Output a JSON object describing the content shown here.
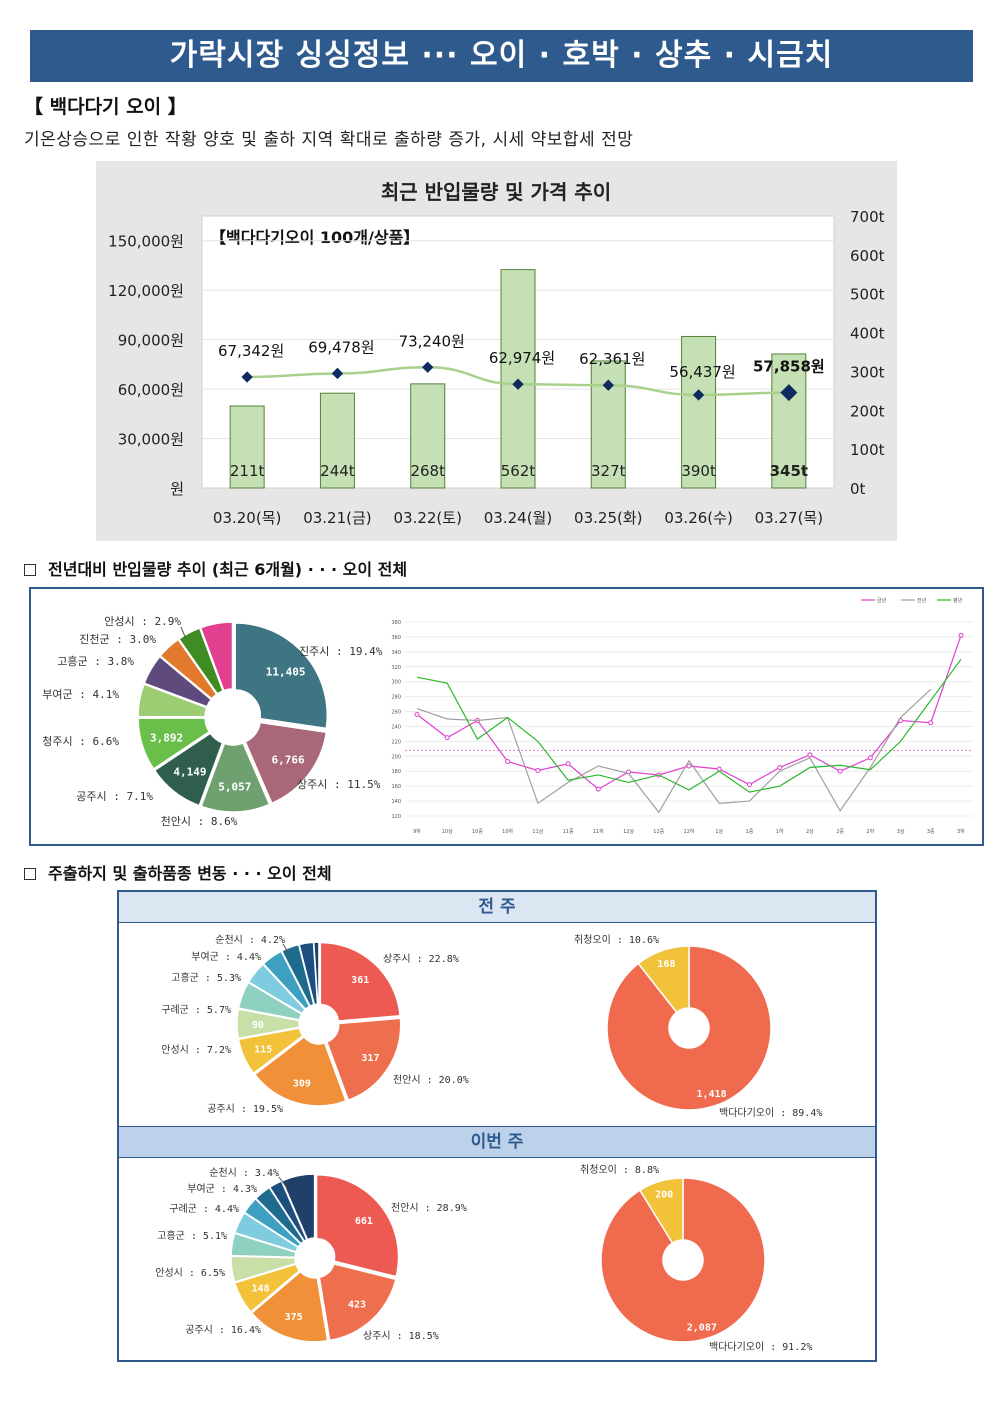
{
  "header": {
    "title": "가락시장 싱싱정보 ··· 오이 · 호박 · 상추 · 시금치"
  },
  "section": {
    "title": "【 백다다기 오이 】",
    "description": "기온상승으로 인한 작황 양호 및 출하 지역 확대로 출하량 증가, 시세 약보합세 전망"
  },
  "subsections": {
    "trend_title": "전년대비 반입물량 추이 (최근 6개월) · · · 오이 전체",
    "origin_title": "주출하지 및 출하품종 변동 · · · 오이 전체",
    "prev_week": "전 주",
    "this_week": "이번 주"
  },
  "chart_data": [
    {
      "id": "price-volume",
      "type": "bar",
      "title": "최근 반입물량 및 가격 추이",
      "subtitle": "【백다다기오이 100개/상품】",
      "categories": [
        "03.20(목)",
        "03.21(금)",
        "03.22(토)",
        "03.24(월)",
        "03.25(화)",
        "03.26(수)",
        "03.27(목)"
      ],
      "series": [
        {
          "kind": "bar",
          "axis": "right",
          "values": [
            211,
            244,
            268,
            562,
            327,
            390,
            345
          ],
          "labels": [
            "211t",
            "244t",
            "268t",
            "562t",
            "327t",
            "390t",
            "345t"
          ]
        },
        {
          "kind": "line",
          "axis": "left",
          "values": [
            67342,
            69478,
            73240,
            62974,
            62361,
            56437,
            57858
          ],
          "labels": [
            "67,342원",
            "69,478원",
            "73,240원",
            "62,974원",
            "62,361원",
            "56,437원",
            "57,858원"
          ]
        }
      ],
      "left_ticks": [
        "원",
        "30,000원",
        "60,000원",
        "90,000원",
        "120,000원",
        "150,000원"
      ],
      "right_ticks": [
        "0t",
        "100t",
        "200t",
        "300t",
        "400t",
        "500t",
        "600t",
        "700t"
      ],
      "ylim_left": [
        0,
        165000
      ],
      "ylim_right": [
        0,
        700
      ],
      "colors": {
        "bar": "#c5e0b4",
        "bar_border": "#548235",
        "line": "#a9d18e",
        "marker": "#0d2b5e"
      }
    },
    {
      "id": "volume-share-6mo",
      "type": "pie",
      "slices": [
        {
          "name": "진주시",
          "label": "진주시 : 19.4%",
          "pct": 19.4,
          "value": 11405,
          "value_label": "11,405",
          "color": "#3d7582"
        },
        {
          "name": "상주시",
          "label": "상주시 : 11.5%",
          "pct": 11.5,
          "value": 6766,
          "value_label": "6,766",
          "color": "#a86877"
        },
        {
          "name": "천안시",
          "label": "천안시 : 8.6%",
          "pct": 8.6,
          "value": 5057,
          "value_label": "5,057",
          "color": "#6fa070"
        },
        {
          "name": "공주시",
          "label": "공주시 : 7.1%",
          "pct": 7.1,
          "value": 4149,
          "value_label": "4,149",
          "color": "#2f5e4c"
        },
        {
          "name": "청주시",
          "label": "청주시 : 6.6%",
          "pct": 6.6,
          "value": 3892,
          "value_label": "3,892",
          "color": "#6abf4b"
        },
        {
          "name": "부여군",
          "label": "부여군 : 4.1%",
          "pct": 4.1,
          "value": null,
          "value_label": "",
          "color": "#9ccd72"
        },
        {
          "name": "고흥군",
          "label": "고흥군 : 3.8%",
          "pct": 3.8,
          "value": null,
          "value_label": "",
          "color": "#5f4a7e"
        },
        {
          "name": "진천군",
          "label": "진천군 : 3.0%",
          "pct": 3.0,
          "value": null,
          "value_label": "",
          "color": "#e17a2c"
        },
        {
          "name": "안성시",
          "label": "안성시 : 2.9%",
          "pct": 2.9,
          "value": null,
          "value_label": "",
          "color": "#3f8c23"
        },
        {
          "name": "기타",
          "label": "",
          "pct": 4.0,
          "value": null,
          "value_label": "",
          "color": "#e0408f"
        }
      ]
    },
    {
      "id": "volume-trend-6mo",
      "type": "line",
      "legend": [
        "금년",
        "전년",
        "평년"
      ],
      "legend_position": "top-right",
      "x": [
        "9하",
        "10상",
        "10중",
        "10하",
        "11상",
        "11중",
        "11하",
        "12상",
        "12중",
        "12하",
        "1상",
        "1중",
        "1하",
        "2상",
        "2중",
        "2하",
        "3상",
        "3중",
        "3하"
      ],
      "y_ticks": [
        120,
        140,
        160,
        180,
        200,
        220,
        240,
        260,
        280,
        300,
        320,
        340,
        360,
        380
      ],
      "ylim": [
        120,
        380
      ],
      "reference_line": 208,
      "series": [
        {
          "name": "금년",
          "color": "#e040d0",
          "values": [
            256,
            225,
            248,
            193,
            181,
            190,
            156,
            179,
            175,
            187,
            183,
            162,
            185,
            202,
            180,
            198,
            248,
            245,
            362
          ]
        },
        {
          "name": "전년",
          "color": "#a0a0a0",
          "values": [
            264,
            250,
            248,
            252,
            137,
            165,
            187,
            177,
            125,
            194,
            137,
            140,
            180,
            198,
            127,
            185,
            252,
            290,
            null
          ]
        },
        {
          "name": "평년",
          "color": "#2db82d",
          "values": [
            306,
            298,
            223,
            252,
            220,
            168,
            175,
            165,
            175,
            155,
            180,
            152,
            160,
            185,
            188,
            182,
            220,
            275,
            330
          ]
        }
      ]
    },
    {
      "id": "region-prev-week",
      "type": "pie",
      "slices": [
        {
          "name": "상주시",
          "label": "상주시 : 22.8%",
          "pct": 22.8,
          "value_label": "361",
          "color": "#ec5a52"
        },
        {
          "name": "천안시",
          "label": "천안시 : 20.0%",
          "pct": 20.0,
          "value_label": "317",
          "color": "#ee6f4e"
        },
        {
          "name": "공주시",
          "label": "공주시 : 19.5%",
          "pct": 19.5,
          "value_label": "309",
          "color": "#f0913a"
        },
        {
          "name": "안성시",
          "label": "안성시 : 7.2%",
          "pct": 7.2,
          "value_label": "115",
          "color": "#f2c23a"
        },
        {
          "name": "구례군",
          "label": "구례군 : 5.7%",
          "pct": 5.7,
          "value_label": "90",
          "color": "#c9dfa8"
        },
        {
          "name": "고흥군",
          "label": "고흥군 : 5.3%",
          "pct": 5.3,
          "value_label": "",
          "color": "#8fd1c0"
        },
        {
          "name": "부여군",
          "label": "부여군 : 4.4%",
          "pct": 4.4,
          "value_label": "",
          "color": "#7fcbe0"
        },
        {
          "name": "순천시",
          "label": "순천시 : 4.2%",
          "pct": 4.2,
          "value_label": "",
          "color": "#3ea0c0"
        },
        {
          "name": "기타1",
          "label": "",
          "pct": 3.5,
          "value_label": "",
          "color": "#1f6b8e"
        },
        {
          "name": "기타2",
          "label": "",
          "pct": 2.8,
          "value_label": "",
          "color": "#1c4e80"
        },
        {
          "name": "기타3",
          "label": "",
          "pct": 1.0,
          "value_label": "",
          "color": "#20406a"
        }
      ]
    },
    {
      "id": "variety-prev-week",
      "type": "pie",
      "slices": [
        {
          "name": "백다다기오이",
          "label": "백다다기오이 : 89.4%",
          "pct": 89.4,
          "value_label": "1,418",
          "color": "#f06b4e"
        },
        {
          "name": "취청오이",
          "label": "취청오이 : 10.6%",
          "pct": 10.6,
          "value_label": "168",
          "color": "#f2c23a"
        }
      ]
    },
    {
      "id": "region-this-week",
      "type": "pie",
      "slices": [
        {
          "name": "천안시",
          "label": "천안시 : 28.9%",
          "pct": 28.9,
          "value_label": "661",
          "color": "#ec5a52"
        },
        {
          "name": "상주시",
          "label": "상주시 : 18.5%",
          "pct": 18.5,
          "value_label": "423",
          "color": "#ee6f4e"
        },
        {
          "name": "공주시",
          "label": "공주시 : 16.4%",
          "pct": 16.4,
          "value_label": "375",
          "color": "#f0913a"
        },
        {
          "name": "안성시",
          "label": "안성시 : 6.5%",
          "pct": 6.5,
          "value_label": "148",
          "color": "#f2c23a"
        },
        {
          "name": "고흥군",
          "label": "고흥군 : 5.1%",
          "pct": 5.1,
          "value_label": "",
          "color": "#c9dfa8"
        },
        {
          "name": "구례군",
          "label": "구례군 : 4.4%",
          "pct": 4.4,
          "value_label": "",
          "color": "#8fd1c0"
        },
        {
          "name": "부여군",
          "label": "부여군 : 4.3%",
          "pct": 4.3,
          "value_label": "",
          "color": "#7fcbe0"
        },
        {
          "name": "순천시",
          "label": "순천시 : 3.4%",
          "pct": 3.4,
          "value_label": "",
          "color": "#3ea0c0"
        },
        {
          "name": "기타1",
          "label": "",
          "pct": 3.4,
          "value_label": "",
          "color": "#1f6b8e"
        },
        {
          "name": "기타2",
          "label": "",
          "pct": 2.6,
          "value_label": "",
          "color": "#1c4e80"
        },
        {
          "name": "기타3",
          "label": "",
          "pct": 6.5,
          "value_label": "",
          "color": "#20406a"
        }
      ]
    },
    {
      "id": "variety-this-week",
      "type": "pie",
      "slices": [
        {
          "name": "백다다기오이",
          "label": "백다다기오이 : 91.2%",
          "pct": 91.2,
          "value_label": "2,087",
          "color": "#f06b4e"
        },
        {
          "name": "취청오이",
          "label": "취청오이 : 8.8%",
          "pct": 8.8,
          "value_label": "200",
          "color": "#f2c23a"
        }
      ]
    }
  ]
}
